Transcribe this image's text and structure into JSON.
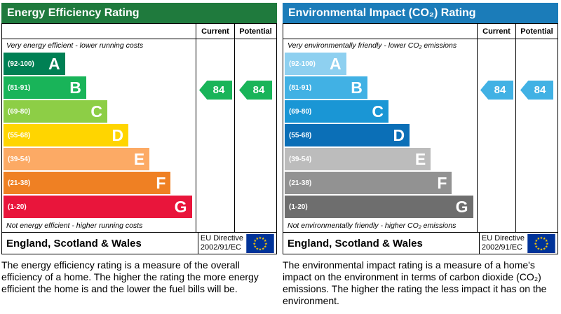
{
  "chart_data": [
    {
      "type": "bar",
      "title": "Energy Efficiency Rating",
      "categories": [
        "A (92-100)",
        "B (81-91)",
        "C (69-80)",
        "D (55-68)",
        "E (39-54)",
        "F (21-38)",
        "G (1-20)"
      ],
      "series": [
        {
          "name": "Current",
          "values": [
            84
          ],
          "band": "B"
        },
        {
          "name": "Potential",
          "values": [
            84
          ],
          "band": "B"
        }
      ],
      "ylim": [
        1,
        100
      ],
      "grid": false,
      "legend_position": "column-headers-top-right"
    },
    {
      "type": "bar",
      "title": "Environmental Impact (CO₂) Rating",
      "categories": [
        "A (92-100)",
        "B (81-91)",
        "C (69-80)",
        "D (55-68)",
        "E (39-54)",
        "F (21-38)",
        "G (1-20)"
      ],
      "series": [
        {
          "name": "Current",
          "values": [
            84
          ],
          "band": "B"
        },
        {
          "name": "Potential",
          "values": [
            84
          ],
          "band": "B"
        }
      ],
      "ylim": [
        1,
        100
      ],
      "grid": false,
      "legend_position": "column-headers-top-right"
    }
  ],
  "panels": [
    {
      "title": "Energy Efficiency Rating",
      "header_bg": "#1f7a3d",
      "columns": {
        "current": "Current",
        "potential": "Potential"
      },
      "top_note": "Very energy efficient - lower running costs",
      "bottom_note": "Not energy efficient - higher running costs",
      "bands": [
        {
          "letter": "A",
          "range": "(92-100)",
          "color": "#008054",
          "width": "32%"
        },
        {
          "letter": "B",
          "range": "(81-91)",
          "color": "#19b459",
          "width": "43%"
        },
        {
          "letter": "C",
          "range": "(69-80)",
          "color": "#8dce46",
          "width": "54%"
        },
        {
          "letter": "D",
          "range": "(55-68)",
          "color": "#ffd500",
          "width": "65%"
        },
        {
          "letter": "E",
          "range": "(39-54)",
          "color": "#fcaa65",
          "width": "76%"
        },
        {
          "letter": "F",
          "range": "(21-38)",
          "color": "#ef8023",
          "width": "87%"
        },
        {
          "letter": "G",
          "range": "(1-20)",
          "color": "#e9153b",
          "width": "98%"
        }
      ],
      "current": {
        "value": "84",
        "band": "B",
        "arrow_color": "#19b459"
      },
      "potential": {
        "value": "84",
        "band": "B",
        "arrow_color": "#19b459"
      },
      "footer": {
        "region": "England, Scotland & Wales",
        "directive_line1": "EU Directive",
        "directive_line2": "2002/91/EC"
      },
      "description": "The energy efficiency rating is a measure of the overall efficiency of a home. The higher the rating the more energy efficient the home is and the lower the fuel bills will be."
    },
    {
      "title": "Environmental Impact (CO₂) Rating",
      "header_bg": "#1b7cb9",
      "columns": {
        "current": "Current",
        "potential": "Potential"
      },
      "top_note": "Very environmentally friendly - lower CO₂ emissions",
      "bottom_note": "Not environmentally friendly - higher CO₂ emissions",
      "bands": [
        {
          "letter": "A",
          "range": "(92-100)",
          "color": "#8ed0f0",
          "width": "32%"
        },
        {
          "letter": "B",
          "range": "(81-91)",
          "color": "#41b1e4",
          "width": "43%"
        },
        {
          "letter": "C",
          "range": "(69-80)",
          "color": "#1a96d5",
          "width": "54%"
        },
        {
          "letter": "D",
          "range": "(55-68)",
          "color": "#0b6fb7",
          "width": "65%"
        },
        {
          "letter": "E",
          "range": "(39-54)",
          "color": "#bcbcbc",
          "width": "76%"
        },
        {
          "letter": "F",
          "range": "(21-38)",
          "color": "#929292",
          "width": "87%"
        },
        {
          "letter": "G",
          "range": "(1-20)",
          "color": "#6e6e6e",
          "width": "98%"
        }
      ],
      "current": {
        "value": "84",
        "band": "B",
        "arrow_color": "#41b1e4"
      },
      "potential": {
        "value": "84",
        "band": "B",
        "arrow_color": "#41b1e4"
      },
      "footer": {
        "region": "England, Scotland & Wales",
        "directive_line1": "EU Directive",
        "directive_line2": "2002/91/EC"
      },
      "description": "The environmental impact rating is a measure of a home's impact on the environment in terms of carbon dioxide (CO₂) emissions. The higher the rating the less impact it has on the environment."
    }
  ]
}
